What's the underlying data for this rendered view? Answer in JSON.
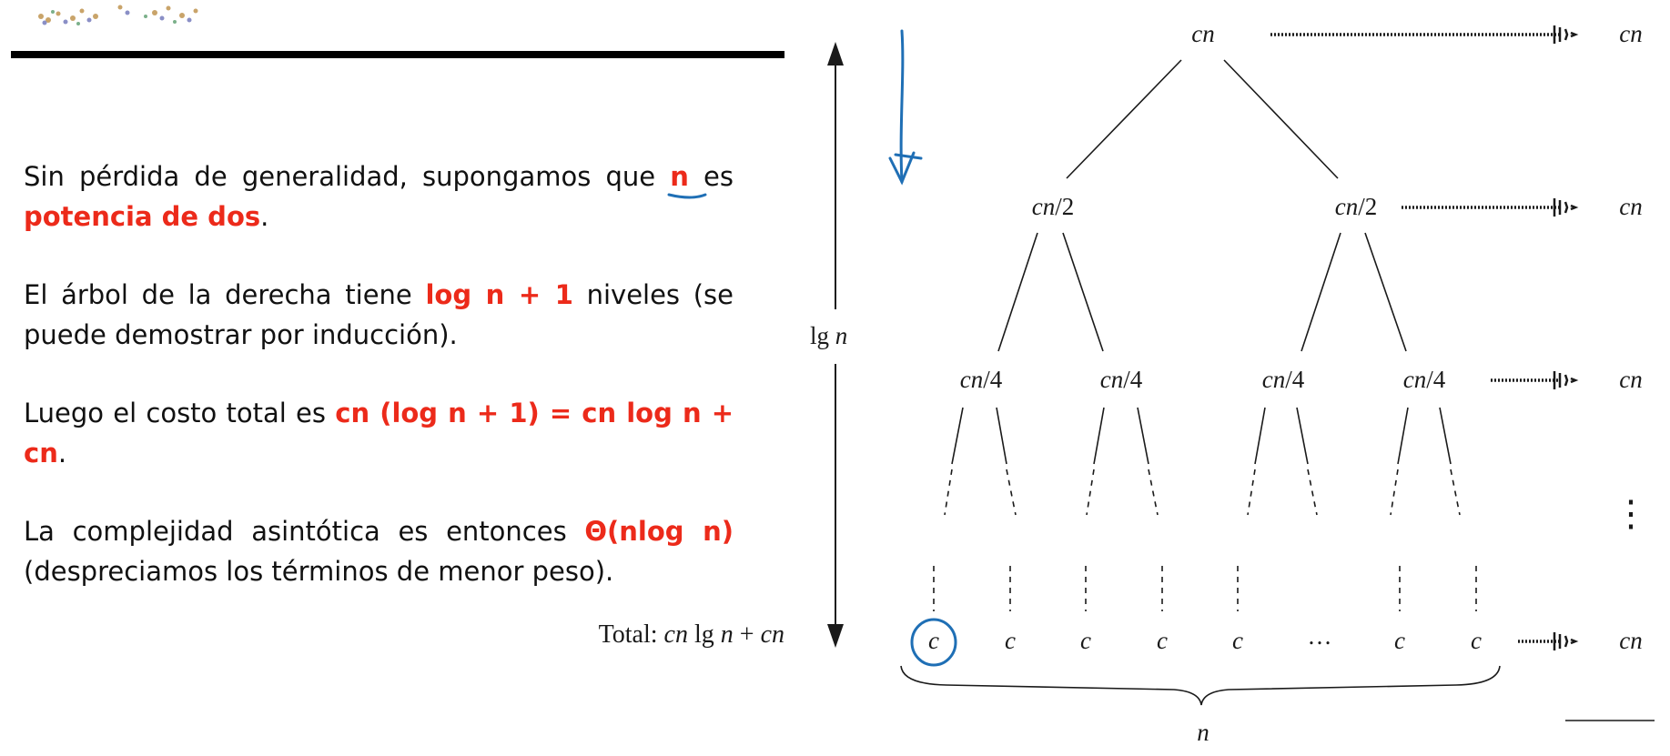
{
  "slide": {
    "paragraphs": [
      [
        {
          "t": "Sin pérdida de generalidad, supongamos que "
        },
        {
          "t": "n",
          "hl": true
        },
        {
          "t": " es "
        },
        {
          "t": "potencia de dos",
          "hl": true
        },
        {
          "t": "."
        }
      ],
      [
        {
          "t": "El árbol de la derecha tiene "
        },
        {
          "t": "log n + 1",
          "hl": true
        },
        {
          "t": " niveles (se puede demostrar por inducción)."
        }
      ],
      [
        {
          "t": "Luego el costo total es "
        },
        {
          "t": "cn (log n + 1) = cn log n + cn",
          "hl": true
        },
        {
          "t": "."
        }
      ],
      [
        {
          "t": "La complejidad asintótica es entonces "
        },
        {
          "t": "Θ(nlog n)",
          "hl": true
        },
        {
          "t": " (despreciamos los términos de menor peso)."
        }
      ]
    ],
    "highlight_color": "#ec2a1a",
    "ink_color": "#1f6fb5"
  },
  "diagram": {
    "levels": [
      {
        "nodes": [
          [
            "c",
            "n"
          ]
        ],
        "cost": [
          "c",
          "n"
        ]
      },
      {
        "nodes": [
          [
            "c",
            "n",
            "/2"
          ],
          [
            "c",
            "n",
            "/2"
          ]
        ],
        "cost": [
          "c",
          "n"
        ]
      },
      {
        "nodes": [
          [
            "c",
            "n",
            "/4"
          ],
          [
            "c",
            "n",
            "/4"
          ],
          [
            "c",
            "n",
            "/4"
          ],
          [
            "c",
            "n",
            "/4"
          ]
        ],
        "cost": [
          "c",
          "n"
        ]
      }
    ],
    "leaves": [
      "c",
      "c",
      "c",
      "c",
      "c",
      "…",
      "c",
      "c"
    ],
    "leaf_cost": [
      "c",
      "n"
    ],
    "height_label": [
      "lg ",
      "n"
    ],
    "total_label": [
      "Total: ",
      "cn",
      " lg ",
      "n",
      " + ",
      "cn"
    ],
    "width_label": "n",
    "vertical_ellipsis": "⋮"
  }
}
